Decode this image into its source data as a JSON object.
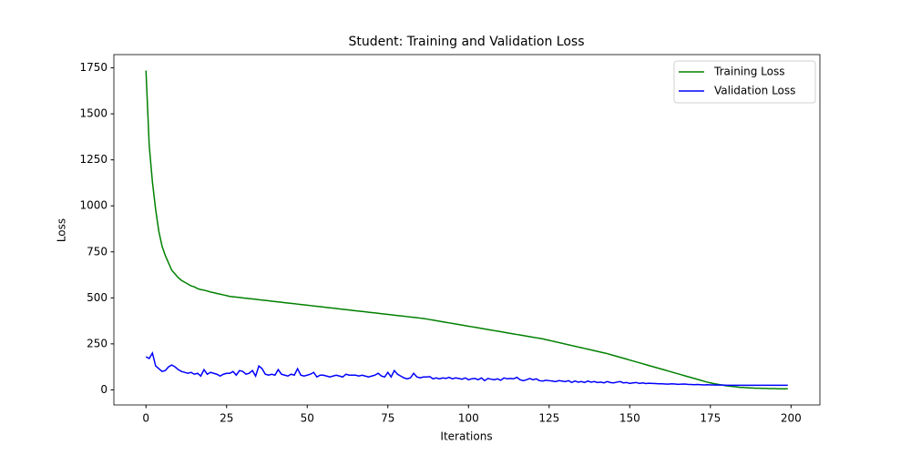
{
  "chart_data": {
    "type": "line",
    "title": "Student: Training and Validation Loss",
    "xlabel": "Iterations",
    "ylabel": "Loss",
    "x": [
      0,
      1,
      2,
      3,
      4,
      5,
      6,
      7,
      8,
      9,
      10,
      11,
      12,
      13,
      14,
      15,
      16,
      17,
      18,
      19,
      20,
      21,
      22,
      23,
      24,
      25,
      26,
      27,
      28,
      29,
      30,
      31,
      32,
      33,
      34,
      35,
      36,
      37,
      38,
      39,
      40,
      41,
      42,
      43,
      44,
      45,
      46,
      47,
      48,
      49,
      50,
      51,
      52,
      53,
      54,
      55,
      56,
      57,
      58,
      59,
      60,
      61,
      62,
      63,
      64,
      65,
      66,
      67,
      68,
      69,
      70,
      71,
      72,
      73,
      74,
      75,
      76,
      77,
      78,
      79,
      80,
      81,
      82,
      83,
      84,
      85,
      86,
      87,
      88,
      89,
      90,
      91,
      92,
      93,
      94,
      95,
      96,
      97,
      98,
      99,
      100,
      101,
      102,
      103,
      104,
      105,
      106,
      107,
      108,
      109,
      110,
      111,
      112,
      113,
      114,
      115,
      116,
      117,
      118,
      119,
      120,
      121,
      122,
      123,
      124,
      125,
      126,
      127,
      128,
      129,
      130,
      131,
      132,
      133,
      134,
      135,
      136,
      137,
      138,
      139,
      140,
      141,
      142,
      143,
      144,
      145,
      146,
      147,
      148,
      149,
      150,
      151,
      152,
      153,
      154,
      155,
      156,
      157,
      158,
      159,
      160,
      161,
      162,
      163,
      164,
      165,
      166,
      167,
      168,
      169,
      170,
      171,
      172,
      173,
      174,
      175,
      176,
      177,
      178,
      179,
      180,
      181,
      182,
      183,
      184,
      185,
      186,
      187,
      188,
      189,
      190,
      191,
      192,
      193,
      194,
      195,
      196,
      197,
      198,
      199
    ],
    "series": [
      {
        "name": "Training Loss",
        "color": "#008000",
        "values": [
          1735,
          1330,
          1130,
          980,
          860,
          780,
          730,
          690,
          650,
          630,
          610,
          595,
          585,
          575,
          565,
          560,
          550,
          545,
          542,
          537,
          532,
          528,
          524,
          520,
          516,
          512,
          508,
          506,
          504,
          502,
          500,
          498,
          496,
          494,
          492,
          490,
          488,
          486,
          484,
          482,
          480,
          478,
          476,
          474,
          472,
          470,
          468,
          466,
          464,
          462,
          460,
          458,
          456,
          454,
          452,
          450,
          448,
          446,
          444,
          442,
          440,
          438,
          436,
          434,
          432,
          430,
          428,
          426,
          424,
          422,
          420,
          418,
          416,
          414,
          412,
          410,
          408,
          406,
          404,
          402,
          400,
          398,
          396,
          394,
          392,
          390,
          388,
          385,
          382,
          379,
          376,
          373,
          370,
          367,
          364,
          361,
          358,
          355,
          352,
          349,
          346,
          343,
          340,
          337,
          334,
          331,
          328,
          325,
          322,
          319,
          316,
          313,
          310,
          307,
          304,
          301,
          298,
          295,
          292,
          289,
          286,
          283,
          280,
          277,
          273,
          269,
          265,
          261,
          257,
          253,
          249,
          245,
          241,
          237,
          233,
          229,
          225,
          221,
          217,
          213,
          209,
          205,
          201,
          197,
          192,
          187,
          182,
          177,
          172,
          167,
          162,
          157,
          152,
          147,
          142,
          137,
          132,
          127,
          122,
          117,
          112,
          107,
          102,
          97,
          92,
          87,
          82,
          77,
          72,
          67,
          62,
          57,
          52,
          47,
          42,
          38,
          34,
          31,
          28,
          25,
          22,
          20,
          18,
          16,
          14,
          13,
          12,
          11,
          10,
          9,
          9,
          8,
          8,
          7,
          7,
          7,
          6,
          6,
          6,
          6
        ]
      },
      {
        "name": "Validation Loss",
        "color": "#0000ff",
        "values": [
          180,
          170,
          200,
          130,
          115,
          100,
          105,
          125,
          135,
          125,
          110,
          100,
          95,
          90,
          95,
          85,
          90,
          75,
          110,
          85,
          95,
          90,
          85,
          75,
          85,
          90,
          90,
          100,
          80,
          105,
          100,
          85,
          90,
          105,
          75,
          130,
          115,
          85,
          80,
          85,
          80,
          110,
          85,
          80,
          75,
          85,
          80,
          115,
          80,
          75,
          80,
          85,
          95,
          70,
          80,
          80,
          75,
          70,
          75,
          80,
          75,
          70,
          85,
          80,
          80,
          80,
          75,
          80,
          75,
          70,
          75,
          80,
          90,
          75,
          70,
          95,
          70,
          105,
          85,
          75,
          65,
          60,
          65,
          90,
          70,
          65,
          70,
          70,
          72,
          60,
          65,
          60,
          65,
          62,
          68,
          60,
          65,
          62,
          58,
          65,
          55,
          60,
          62,
          55,
          65,
          50,
          62,
          58,
          55,
          60,
          52,
          65,
          60,
          62,
          60,
          68,
          55,
          50,
          55,
          62,
          55,
          60,
          50,
          48,
          52,
          50,
          48,
          45,
          50,
          48,
          45,
          50,
          40,
          48,
          42,
          45,
          40,
          48,
          42,
          45,
          40,
          42,
          38,
          45,
          40,
          38,
          42,
          45,
          38,
          40,
          35,
          38,
          40,
          35,
          38,
          34,
          36,
          35,
          34,
          33,
          33,
          32,
          31,
          33,
          32,
          30,
          31,
          32,
          30,
          29,
          28,
          29,
          28,
          27,
          28,
          27,
          27,
          26,
          26,
          26,
          25,
          25,
          25,
          25,
          25,
          25,
          25,
          25,
          25,
          25,
          25,
          25,
          25,
          25,
          25,
          25,
          25,
          25,
          25,
          25
        ]
      }
    ],
    "xlim": [
      -9.95,
      208.95
    ],
    "xticks": [
      0,
      25,
      50,
      75,
      100,
      125,
      150,
      175,
      200
    ],
    "ylim": [
      -82,
      1822
    ],
    "yticks": [
      0,
      250,
      500,
      750,
      1000,
      1250,
      1500,
      1750
    ],
    "legend": "upper right",
    "grid": false
  }
}
